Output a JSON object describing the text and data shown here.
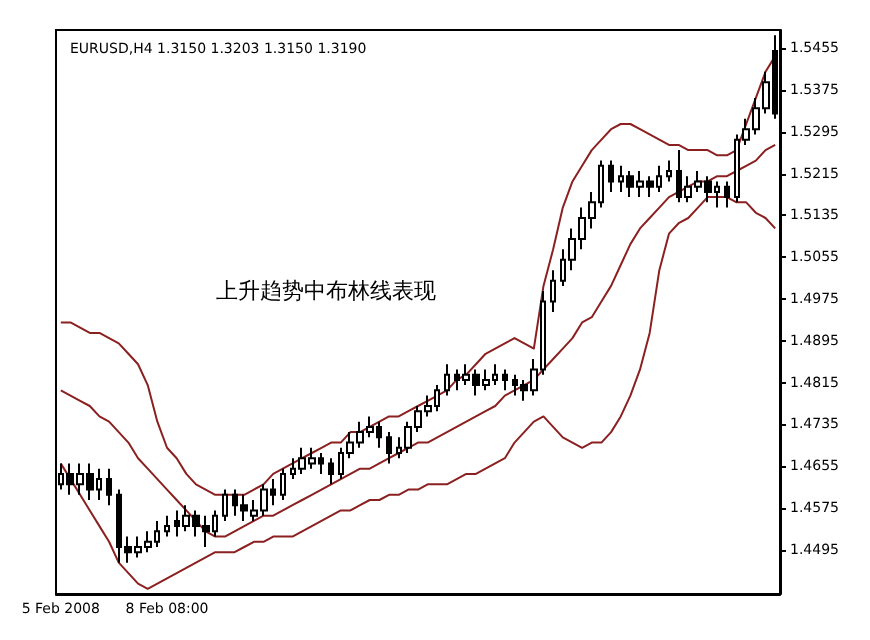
{
  "chart_data": {
    "type": "candlestick",
    "title": "EURUSD,H4 1.3150 1.3203 1.3150 1.3190",
    "annotations": [
      "上升趋势中布林线表现"
    ],
    "categories": [
      "5 Feb 2008",
      null,
      null,
      null,
      null,
      null,
      null,
      null,
      null,
      null,
      null,
      "8 Feb 08:00",
      null,
      null,
      null,
      null,
      null,
      null,
      null,
      null,
      null,
      null,
      null,
      null,
      null,
      null,
      null,
      null,
      null,
      null,
      null,
      null,
      null,
      null,
      null,
      null,
      null,
      null,
      null,
      null,
      null,
      null,
      null,
      null,
      null,
      null,
      null,
      null,
      null,
      null,
      null,
      null,
      null,
      null,
      null,
      null,
      null,
      null,
      null,
      null,
      null,
      null,
      null,
      null,
      null,
      null,
      null,
      null,
      null,
      null,
      null,
      null,
      null,
      null,
      null
    ],
    "ylim": [
      1.441,
      1.549
    ],
    "yticks": [
      1.4495,
      1.4575,
      1.4655,
      1.4735,
      1.4815,
      1.4895,
      1.4975,
      1.5055,
      1.5135,
      1.5215,
      1.5295,
      1.5375,
      1.5455
    ],
    "grid": false,
    "marker": "none",
    "line_style": "solid",
    "series": [
      {
        "type": "line",
        "color": "#8b2020",
        "values": [
          1.493,
          1.493,
          1.492,
          1.491,
          1.491,
          1.49,
          1.489,
          1.487,
          1.485,
          1.481,
          1.474,
          1.469,
          1.467,
          1.464,
          1.462,
          1.461,
          1.46,
          1.46,
          1.46,
          1.46,
          1.461,
          1.462,
          1.464,
          1.465,
          1.466,
          1.467,
          1.468,
          1.469,
          1.47,
          1.47,
          1.472,
          1.472,
          1.473,
          1.474,
          1.475,
          1.475,
          1.476,
          1.477,
          1.478,
          1.479,
          1.48,
          1.482,
          1.483,
          1.485,
          1.487,
          1.488,
          1.489,
          1.49,
          1.489,
          1.488,
          1.5,
          1.507,
          1.515,
          1.52,
          1.523,
          1.526,
          1.528,
          1.53,
          1.531,
          1.531,
          1.53,
          1.529,
          1.528,
          1.527,
          1.527,
          1.526,
          1.526,
          1.526,
          1.525,
          1.525,
          1.526,
          1.531,
          1.536,
          1.541,
          1.544
        ]
      },
      {
        "type": "line",
        "color": "#8b2020",
        "values": [
          1.48,
          1.479,
          1.478,
          1.477,
          1.475,
          1.474,
          1.472,
          1.47,
          1.467,
          1.465,
          1.463,
          1.461,
          1.459,
          1.457,
          1.455,
          1.453,
          1.452,
          1.452,
          1.453,
          1.454,
          1.455,
          1.456,
          1.456,
          1.457,
          1.458,
          1.459,
          1.46,
          1.461,
          1.462,
          1.463,
          1.464,
          1.465,
          1.465,
          1.466,
          1.467,
          1.468,
          1.469,
          1.47,
          1.47,
          1.471,
          1.472,
          1.473,
          1.474,
          1.475,
          1.476,
          1.477,
          1.479,
          1.48,
          1.481,
          1.482,
          1.484,
          1.486,
          1.488,
          1.49,
          1.493,
          1.494,
          1.497,
          1.5,
          1.504,
          1.508,
          1.511,
          1.513,
          1.515,
          1.517,
          1.518,
          1.519,
          1.52,
          1.52,
          1.521,
          1.521,
          1.522,
          1.523,
          1.524,
          1.526,
          1.527
        ]
      },
      {
        "type": "line",
        "color": "#8b2020",
        "values": [
          1.466,
          1.463,
          1.46,
          1.457,
          1.454,
          1.451,
          1.447,
          1.445,
          1.443,
          1.442,
          1.443,
          1.444,
          1.445,
          1.446,
          1.447,
          1.448,
          1.449,
          1.449,
          1.449,
          1.45,
          1.451,
          1.451,
          1.452,
          1.452,
          1.452,
          1.453,
          1.454,
          1.455,
          1.456,
          1.457,
          1.457,
          1.458,
          1.459,
          1.459,
          1.46,
          1.46,
          1.461,
          1.461,
          1.462,
          1.462,
          1.462,
          1.463,
          1.464,
          1.464,
          1.465,
          1.466,
          1.467,
          1.47,
          1.472,
          1.474,
          1.475,
          1.473,
          1.471,
          1.47,
          1.469,
          1.47,
          1.47,
          1.472,
          1.475,
          1.479,
          1.484,
          1.491,
          1.503,
          1.51,
          1.512,
          1.513,
          1.515,
          1.517,
          1.517,
          1.517,
          1.516,
          1.516,
          1.514,
          1.513,
          1.511
        ]
      },
      {
        "type": "candlestick",
        "color": "#000000",
        "ohlc": [
          [
            1.462,
            1.466,
            1.461,
            1.464
          ],
          [
            1.464,
            1.466,
            1.46,
            1.462
          ],
          [
            1.462,
            1.466,
            1.46,
            1.464
          ],
          [
            1.464,
            1.466,
            1.459,
            1.461
          ],
          [
            1.461,
            1.465,
            1.459,
            1.463
          ],
          [
            1.463,
            1.465,
            1.458,
            1.46
          ],
          [
            1.46,
            1.461,
            1.447,
            1.45
          ],
          [
            1.45,
            1.452,
            1.447,
            1.449
          ],
          [
            1.449,
            1.452,
            1.448,
            1.45
          ],
          [
            1.45,
            1.453,
            1.449,
            1.451
          ],
          [
            1.451,
            1.455,
            1.45,
            1.453
          ],
          [
            1.453,
            1.456,
            1.452,
            1.454
          ],
          [
            1.455,
            1.457,
            1.452,
            1.454
          ],
          [
            1.454,
            1.458,
            1.453,
            1.456
          ],
          [
            1.456,
            1.457,
            1.452,
            1.454
          ],
          [
            1.454,
            1.456,
            1.45,
            1.453
          ],
          [
            1.453,
            1.457,
            1.452,
            1.456
          ],
          [
            1.456,
            1.461,
            1.455,
            1.46
          ],
          [
            1.46,
            1.461,
            1.456,
            1.458
          ],
          [
            1.458,
            1.46,
            1.455,
            1.457
          ],
          [
            1.456,
            1.459,
            1.455,
            1.457
          ],
          [
            1.457,
            1.462,
            1.456,
            1.461
          ],
          [
            1.461,
            1.463,
            1.458,
            1.46
          ],
          [
            1.46,
            1.465,
            1.459,
            1.464
          ],
          [
            1.464,
            1.467,
            1.463,
            1.465
          ],
          [
            1.465,
            1.469,
            1.464,
            1.467
          ],
          [
            1.466,
            1.469,
            1.465,
            1.467
          ],
          [
            1.467,
            1.468,
            1.464,
            1.466
          ],
          [
            1.466,
            1.467,
            1.462,
            1.464
          ],
          [
            1.464,
            1.469,
            1.463,
            1.468
          ],
          [
            1.468,
            1.472,
            1.467,
            1.47
          ],
          [
            1.47,
            1.474,
            1.469,
            1.472
          ],
          [
            1.472,
            1.475,
            1.471,
            1.473
          ],
          [
            1.473,
            1.474,
            1.469,
            1.471
          ],
          [
            1.471,
            1.472,
            1.466,
            1.468
          ],
          [
            1.468,
            1.471,
            1.467,
            1.469
          ],
          [
            1.469,
            1.474,
            1.468,
            1.473
          ],
          [
            1.473,
            1.477,
            1.472,
            1.476
          ],
          [
            1.476,
            1.479,
            1.475,
            1.477
          ],
          [
            1.477,
            1.481,
            1.476,
            1.48
          ],
          [
            1.48,
            1.485,
            1.479,
            1.483
          ],
          [
            1.483,
            1.484,
            1.48,
            1.482
          ],
          [
            1.482,
            1.485,
            1.481,
            1.483
          ],
          [
            1.483,
            1.484,
            1.479,
            1.481
          ],
          [
            1.481,
            1.484,
            1.48,
            1.482
          ],
          [
            1.482,
            1.485,
            1.481,
            1.483
          ],
          [
            1.483,
            1.484,
            1.48,
            1.482
          ],
          [
            1.482,
            1.483,
            1.479,
            1.481
          ],
          [
            1.481,
            1.482,
            1.478,
            1.48
          ],
          [
            1.48,
            1.486,
            1.479,
            1.484
          ],
          [
            1.484,
            1.499,
            1.483,
            1.497
          ],
          [
            1.497,
            1.503,
            1.495,
            1.501
          ],
          [
            1.501,
            1.507,
            1.5,
            1.505
          ],
          [
            1.505,
            1.511,
            1.503,
            1.509
          ],
          [
            1.509,
            1.515,
            1.507,
            1.513
          ],
          [
            1.513,
            1.518,
            1.511,
            1.516
          ],
          [
            1.516,
            1.524,
            1.515,
            1.523
          ],
          [
            1.523,
            1.524,
            1.518,
            1.52
          ],
          [
            1.52,
            1.523,
            1.518,
            1.521
          ],
          [
            1.521,
            1.522,
            1.517,
            1.519
          ],
          [
            1.519,
            1.522,
            1.517,
            1.52
          ],
          [
            1.52,
            1.521,
            1.517,
            1.519
          ],
          [
            1.519,
            1.523,
            1.518,
            1.521
          ],
          [
            1.521,
            1.524,
            1.52,
            1.522
          ],
          [
            1.522,
            1.526,
            1.516,
            1.517
          ],
          [
            1.517,
            1.521,
            1.516,
            1.519
          ],
          [
            1.519,
            1.522,
            1.518,
            1.52
          ],
          [
            1.52,
            1.521,
            1.516,
            1.518
          ],
          [
            1.518,
            1.52,
            1.515,
            1.519
          ],
          [
            1.519,
            1.52,
            1.515,
            1.517
          ],
          [
            1.517,
            1.529,
            1.516,
            1.528
          ],
          [
            1.528,
            1.532,
            1.527,
            1.53
          ],
          [
            1.53,
            1.536,
            1.529,
            1.534
          ],
          [
            1.534,
            1.541,
            1.533,
            1.539
          ],
          [
            1.545,
            1.548,
            1.532,
            1.533
          ]
        ]
      }
    ]
  }
}
